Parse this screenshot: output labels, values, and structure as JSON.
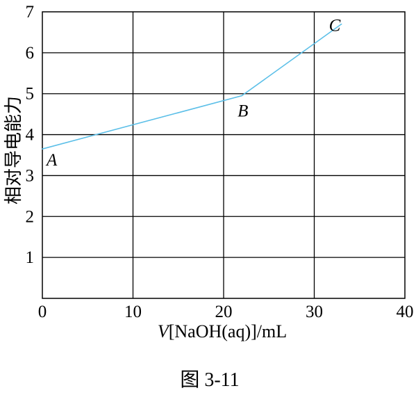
{
  "chart_data": {
    "type": "line",
    "x": [
      0,
      22,
      33
    ],
    "series": [
      {
        "values": [
          3.65,
          4.95,
          6.7
        ]
      }
    ],
    "point_labels": [
      {
        "text": "A",
        "x": 0,
        "y": 3.65
      },
      {
        "text": "B",
        "x": 22,
        "y": 4.95
      },
      {
        "text": "C",
        "x": 33,
        "y": 6.7
      }
    ],
    "xlabel_italic": "V",
    "xlabel_rest": "[NaOH(aq)]/mL",
    "ylabel": "相对导电能力",
    "xlim": [
      0,
      40
    ],
    "ylim": [
      0,
      7
    ],
    "x_ticks": [
      0,
      10,
      20,
      30,
      40
    ],
    "y_ticks": [
      1,
      2,
      3,
      4,
      5,
      6,
      7
    ],
    "grid": true,
    "line_color": "#5bbfe8"
  },
  "caption": "图 3-11"
}
